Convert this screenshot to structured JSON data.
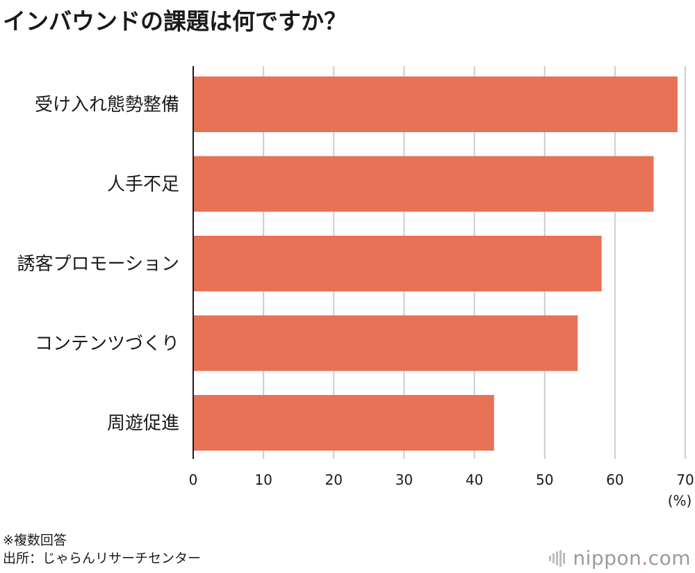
{
  "chart_data": {
    "type": "bar",
    "orientation": "horizontal",
    "title": "インバウンドの課題は何ですか？",
    "categories": [
      "受け入れ態勢整備",
      "人手不足",
      "誘客プロモーション",
      "コンテンツづくり",
      "周遊促進"
    ],
    "values": [
      68.9,
      65.5,
      58.1,
      54.7,
      42.8
    ],
    "xlim": [
      0,
      70
    ],
    "xticks": [
      0,
      10,
      20,
      30,
      40,
      50,
      60,
      70
    ],
    "xlabel": "(%)",
    "grid": true,
    "bar_color": "#e87255",
    "grid_color": "#cccccc"
  },
  "footnote": {
    "line1": "※複数回答",
    "line2": "出所：じゃらんリサーチセンター"
  },
  "brand": {
    "name_prefix": "nippon",
    "name_dot": ".",
    "name_suffix": "com"
  }
}
